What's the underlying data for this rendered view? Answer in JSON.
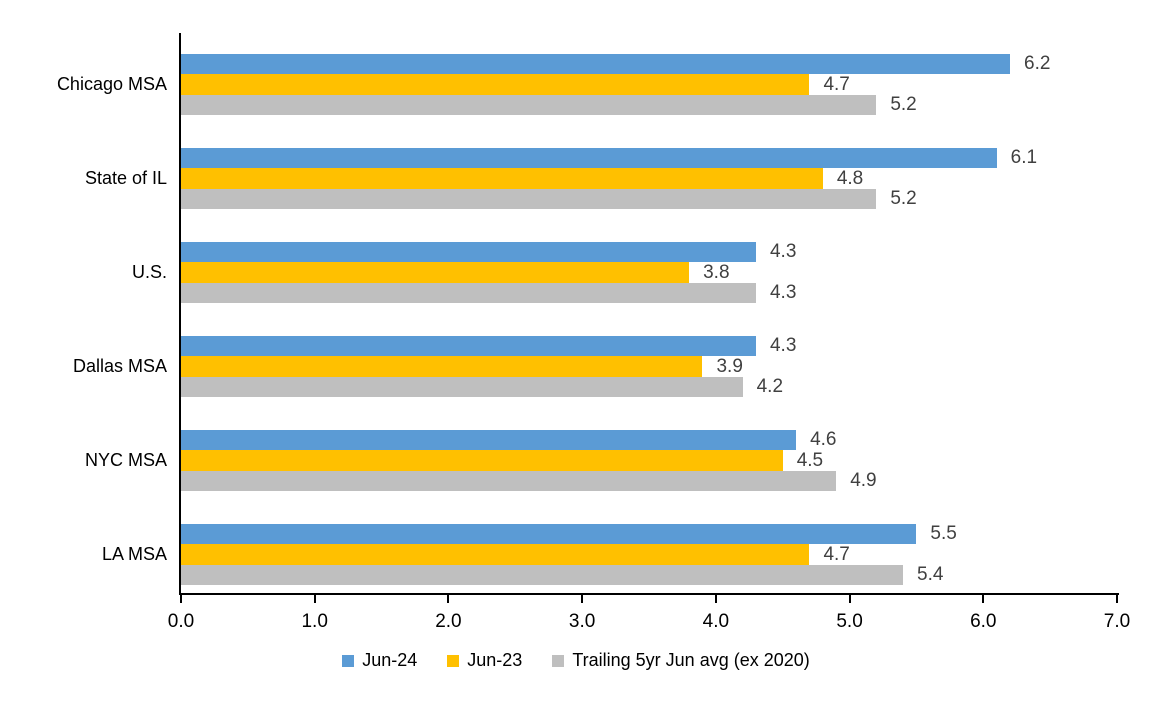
{
  "chart_data": {
    "type": "bar",
    "orientation": "horizontal",
    "title": "",
    "xlabel": "",
    "ylabel": "",
    "categories": [
      "Chicago MSA",
      "State of IL",
      "U.S.",
      "Dallas MSA",
      "NYC MSA",
      "LA MSA"
    ],
    "series": [
      {
        "name": "Jun-24",
        "color": "#5B9BD5",
        "values": [
          6.2,
          6.1,
          4.3,
          4.3,
          4.6,
          5.5
        ]
      },
      {
        "name": "Jun-23",
        "color": "#FFC000",
        "values": [
          4.7,
          4.8,
          3.8,
          3.9,
          4.5,
          4.7
        ]
      },
      {
        "name": "Trailing 5yr Jun avg (ex 2020)",
        "color": "#BFBFBF",
        "values": [
          5.2,
          5.2,
          4.3,
          4.2,
          4.9,
          5.4
        ]
      }
    ],
    "xlim": [
      0.0,
      7.0
    ],
    "xticks": [
      "0.0",
      "1.0",
      "2.0",
      "3.0",
      "4.0",
      "5.0",
      "6.0",
      "7.0"
    ],
    "data_labels": true,
    "grid": false,
    "legend_position": "bottom",
    "styles": {
      "data_label_color": "#404040",
      "axis_color": "#000000",
      "text_color": "#000000",
      "background": "#ffffff"
    }
  }
}
